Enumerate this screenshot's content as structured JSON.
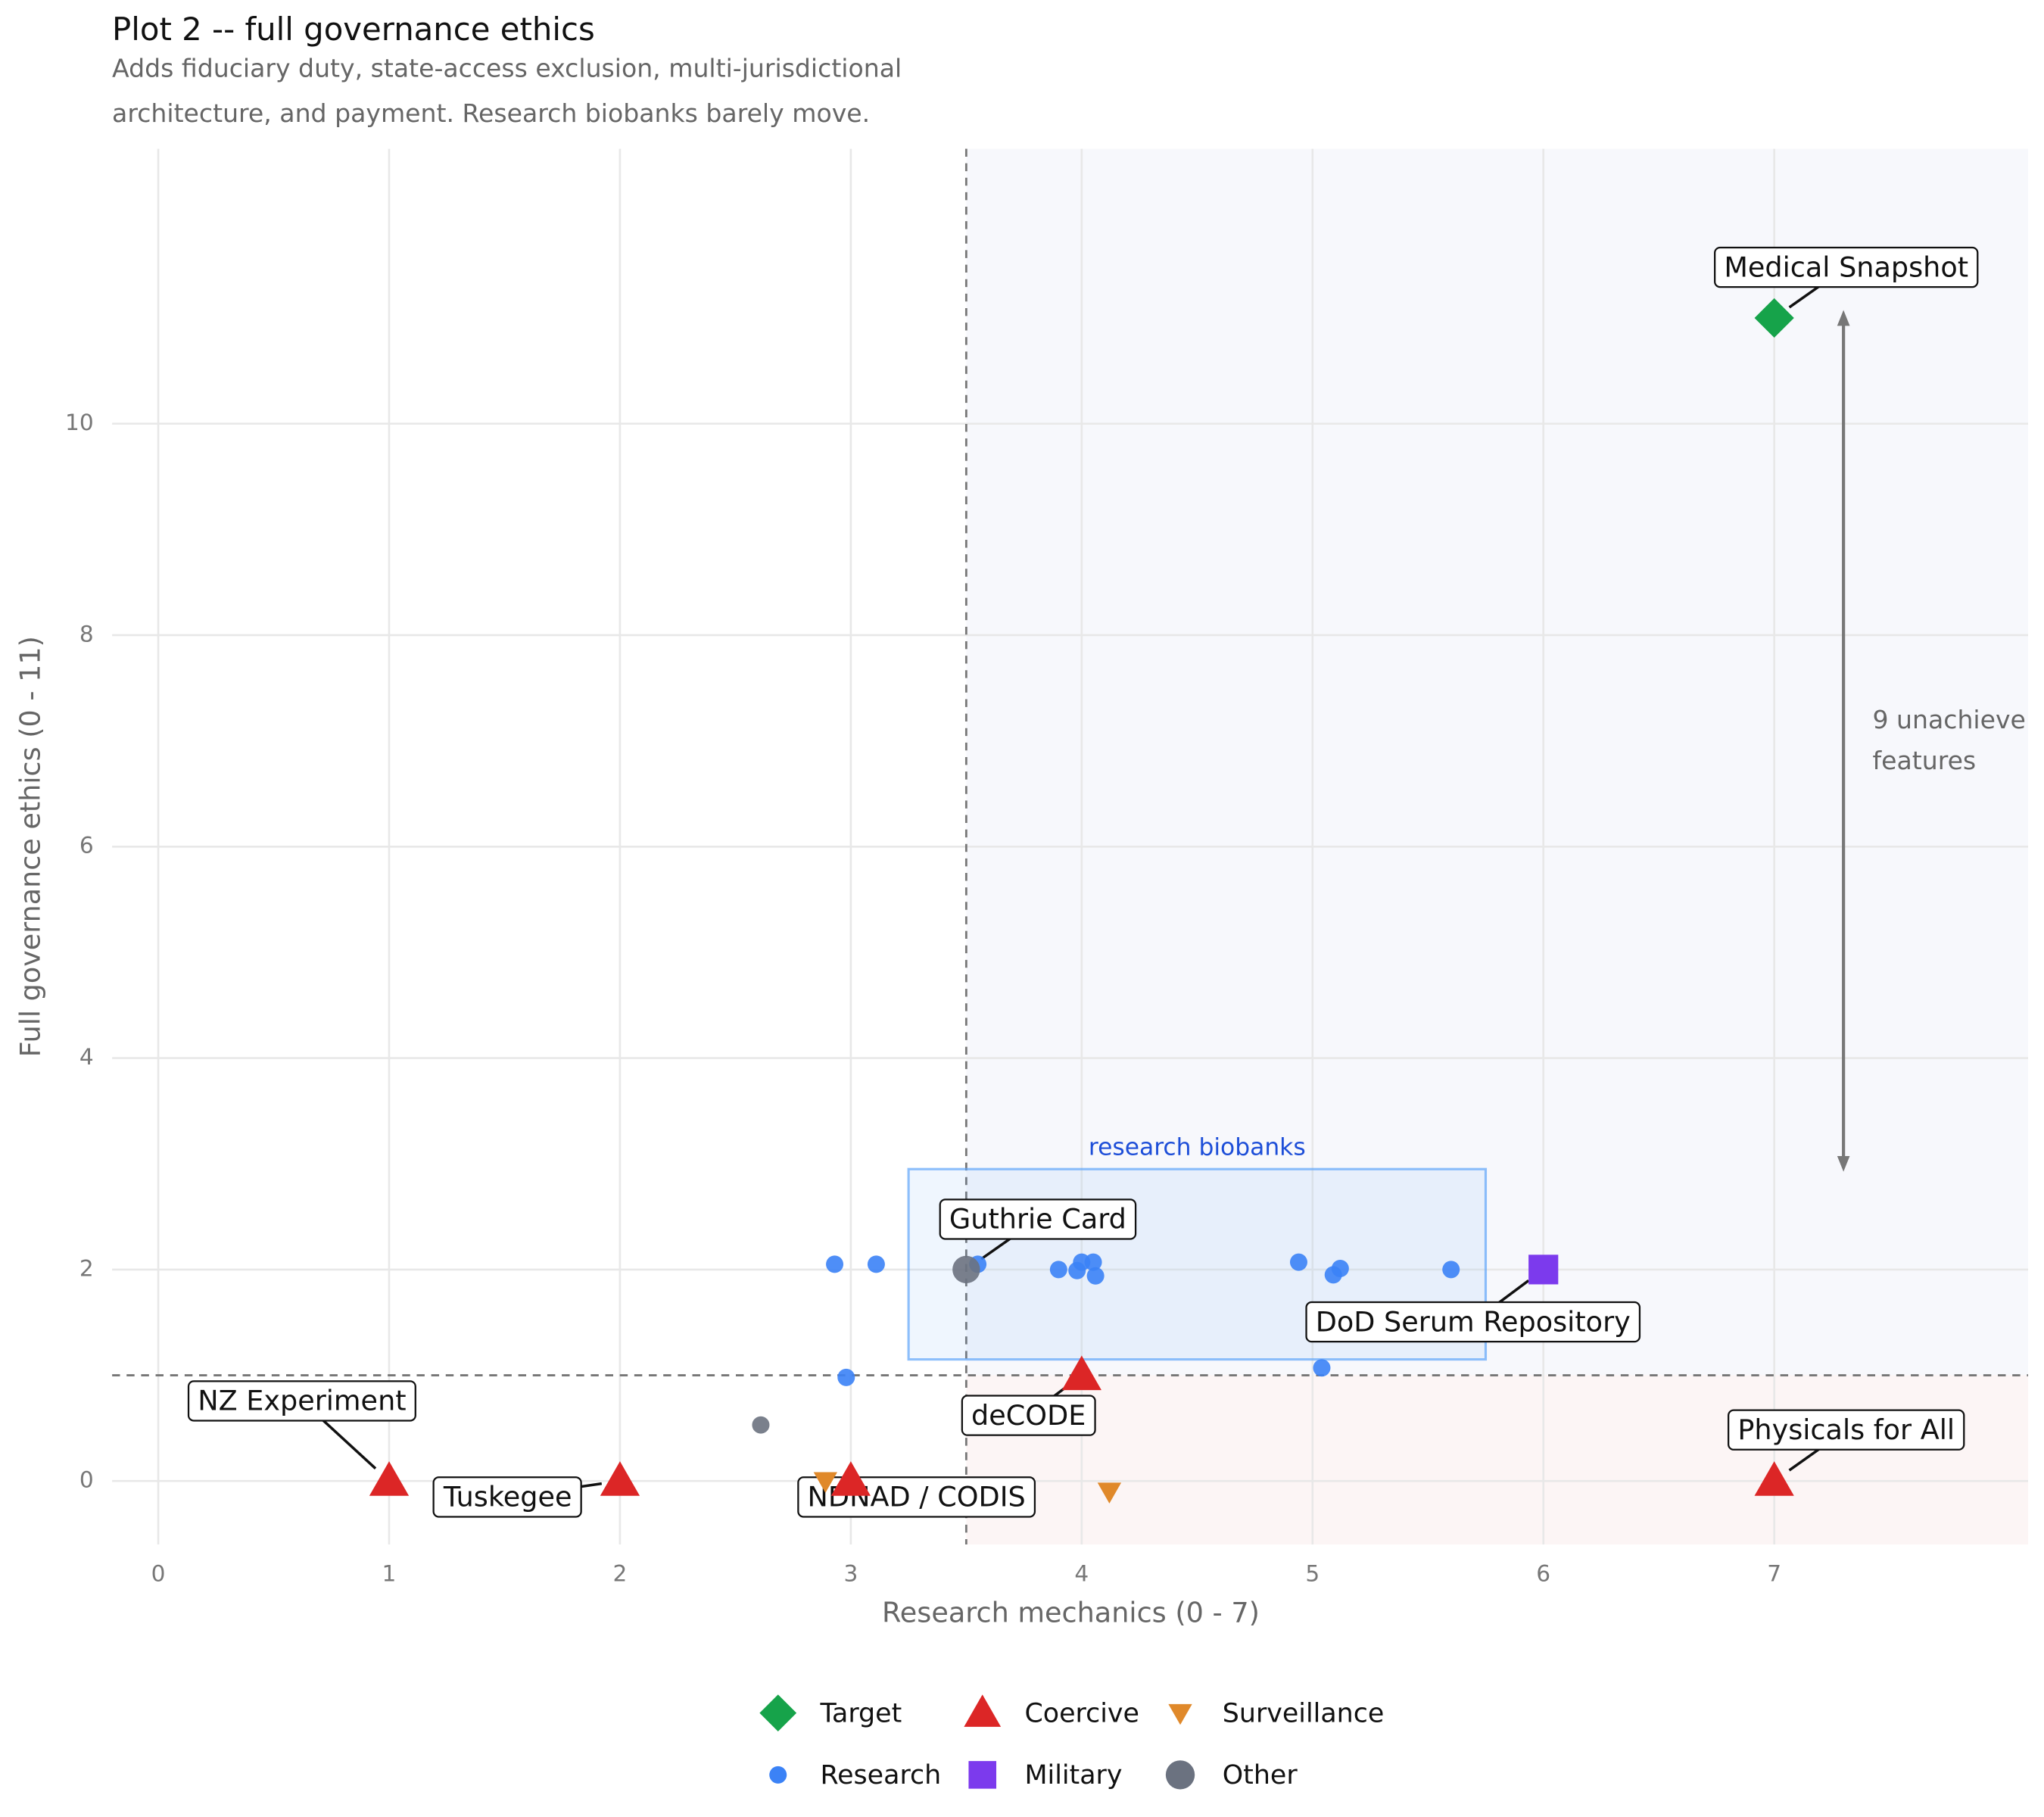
{
  "chart_data": {
    "type": "scatter",
    "title": "Plot 2 -- full governance ethics",
    "subtitle": [
      "Adds fiduciary duty, state-access exclusion, multi-jurisdictional",
      "architecture, and payment. Research biobanks barely move."
    ],
    "x_label": "Research mechanics  (0 - 7)",
    "y_label": "Full governance ethics  (0 - 11)",
    "xlim": [
      -0.2,
      8.1
    ],
    "ylim": [
      -0.6,
      12.6
    ],
    "xticks": [
      0,
      1,
      2,
      3,
      4,
      5,
      6,
      7
    ],
    "yticks": [
      0,
      2,
      4,
      6,
      8,
      10
    ],
    "grid": true,
    "vline": 3.5,
    "hline": 1,
    "series": [
      {
        "name": "Target",
        "color": "#16a34a",
        "marker": "diamond",
        "x": [
          7
        ],
        "y": [
          11
        ]
      },
      {
        "name": "Coercive",
        "color": "#dc2626",
        "marker": "triangle",
        "x": [
          1,
          2,
          3,
          4,
          7
        ],
        "y": [
          0,
          0,
          0,
          1,
          0
        ]
      },
      {
        "name": "Surveillance",
        "color": "#e0892a",
        "marker": "triangle-down",
        "x": [
          2.89,
          4.12
        ],
        "y": [
          0,
          -0.1
        ]
      },
      {
        "name": "Research",
        "color": "#3b82f6",
        "marker": "circle",
        "x": [
          2.93,
          3.11,
          3.55,
          3.9,
          4.0,
          3.98,
          4.05,
          4.06,
          4.94,
          5.09,
          5.12,
          5.6,
          2.98,
          5.04
        ],
        "y": [
          2.05,
          2.05,
          2.05,
          2.0,
          2.07,
          1.99,
          2.07,
          1.94,
          2.07,
          1.95,
          2.01,
          2.0,
          0.98,
          1.07
        ]
      },
      {
        "name": "Military",
        "color": "#7c3aed",
        "marker": "square",
        "x": [
          6
        ],
        "y": [
          2
        ]
      },
      {
        "name": "Other",
        "color": "#6b7280",
        "marker": "circle",
        "x": [
          3.5,
          2.61
        ],
        "y": [
          2,
          0.53
        ]
      }
    ],
    "region_box": {
      "label": "research biobanks",
      "x": [
        3.25,
        5.75
      ],
      "y": [
        1.15,
        2.95
      ],
      "color": "#60a5fa"
    },
    "range_arrow": {
      "x": 7.3,
      "y": [
        3,
        11
      ],
      "label": [
        "9 unachieve",
        "features"
      ]
    },
    "annotations": [
      {
        "label": "Medical Snapshot",
        "x": 7,
        "y": 11
      },
      {
        "label": "NZ Experiment",
        "x": 1,
        "y": 0
      },
      {
        "label": "Tuskegee",
        "x": 2,
        "y": 0
      },
      {
        "label": "NDNAD / CODIS",
        "x": 3,
        "y": 0
      },
      {
        "label": "deCODE",
        "x": 4,
        "y": 1
      },
      {
        "label": "Guthrie Card",
        "x": 3.5,
        "y": 2
      },
      {
        "label": "DoD Serum Repository",
        "x": 6,
        "y": 2
      },
      {
        "label": "Physicals for All",
        "x": 7,
        "y": 0
      }
    ]
  }
}
